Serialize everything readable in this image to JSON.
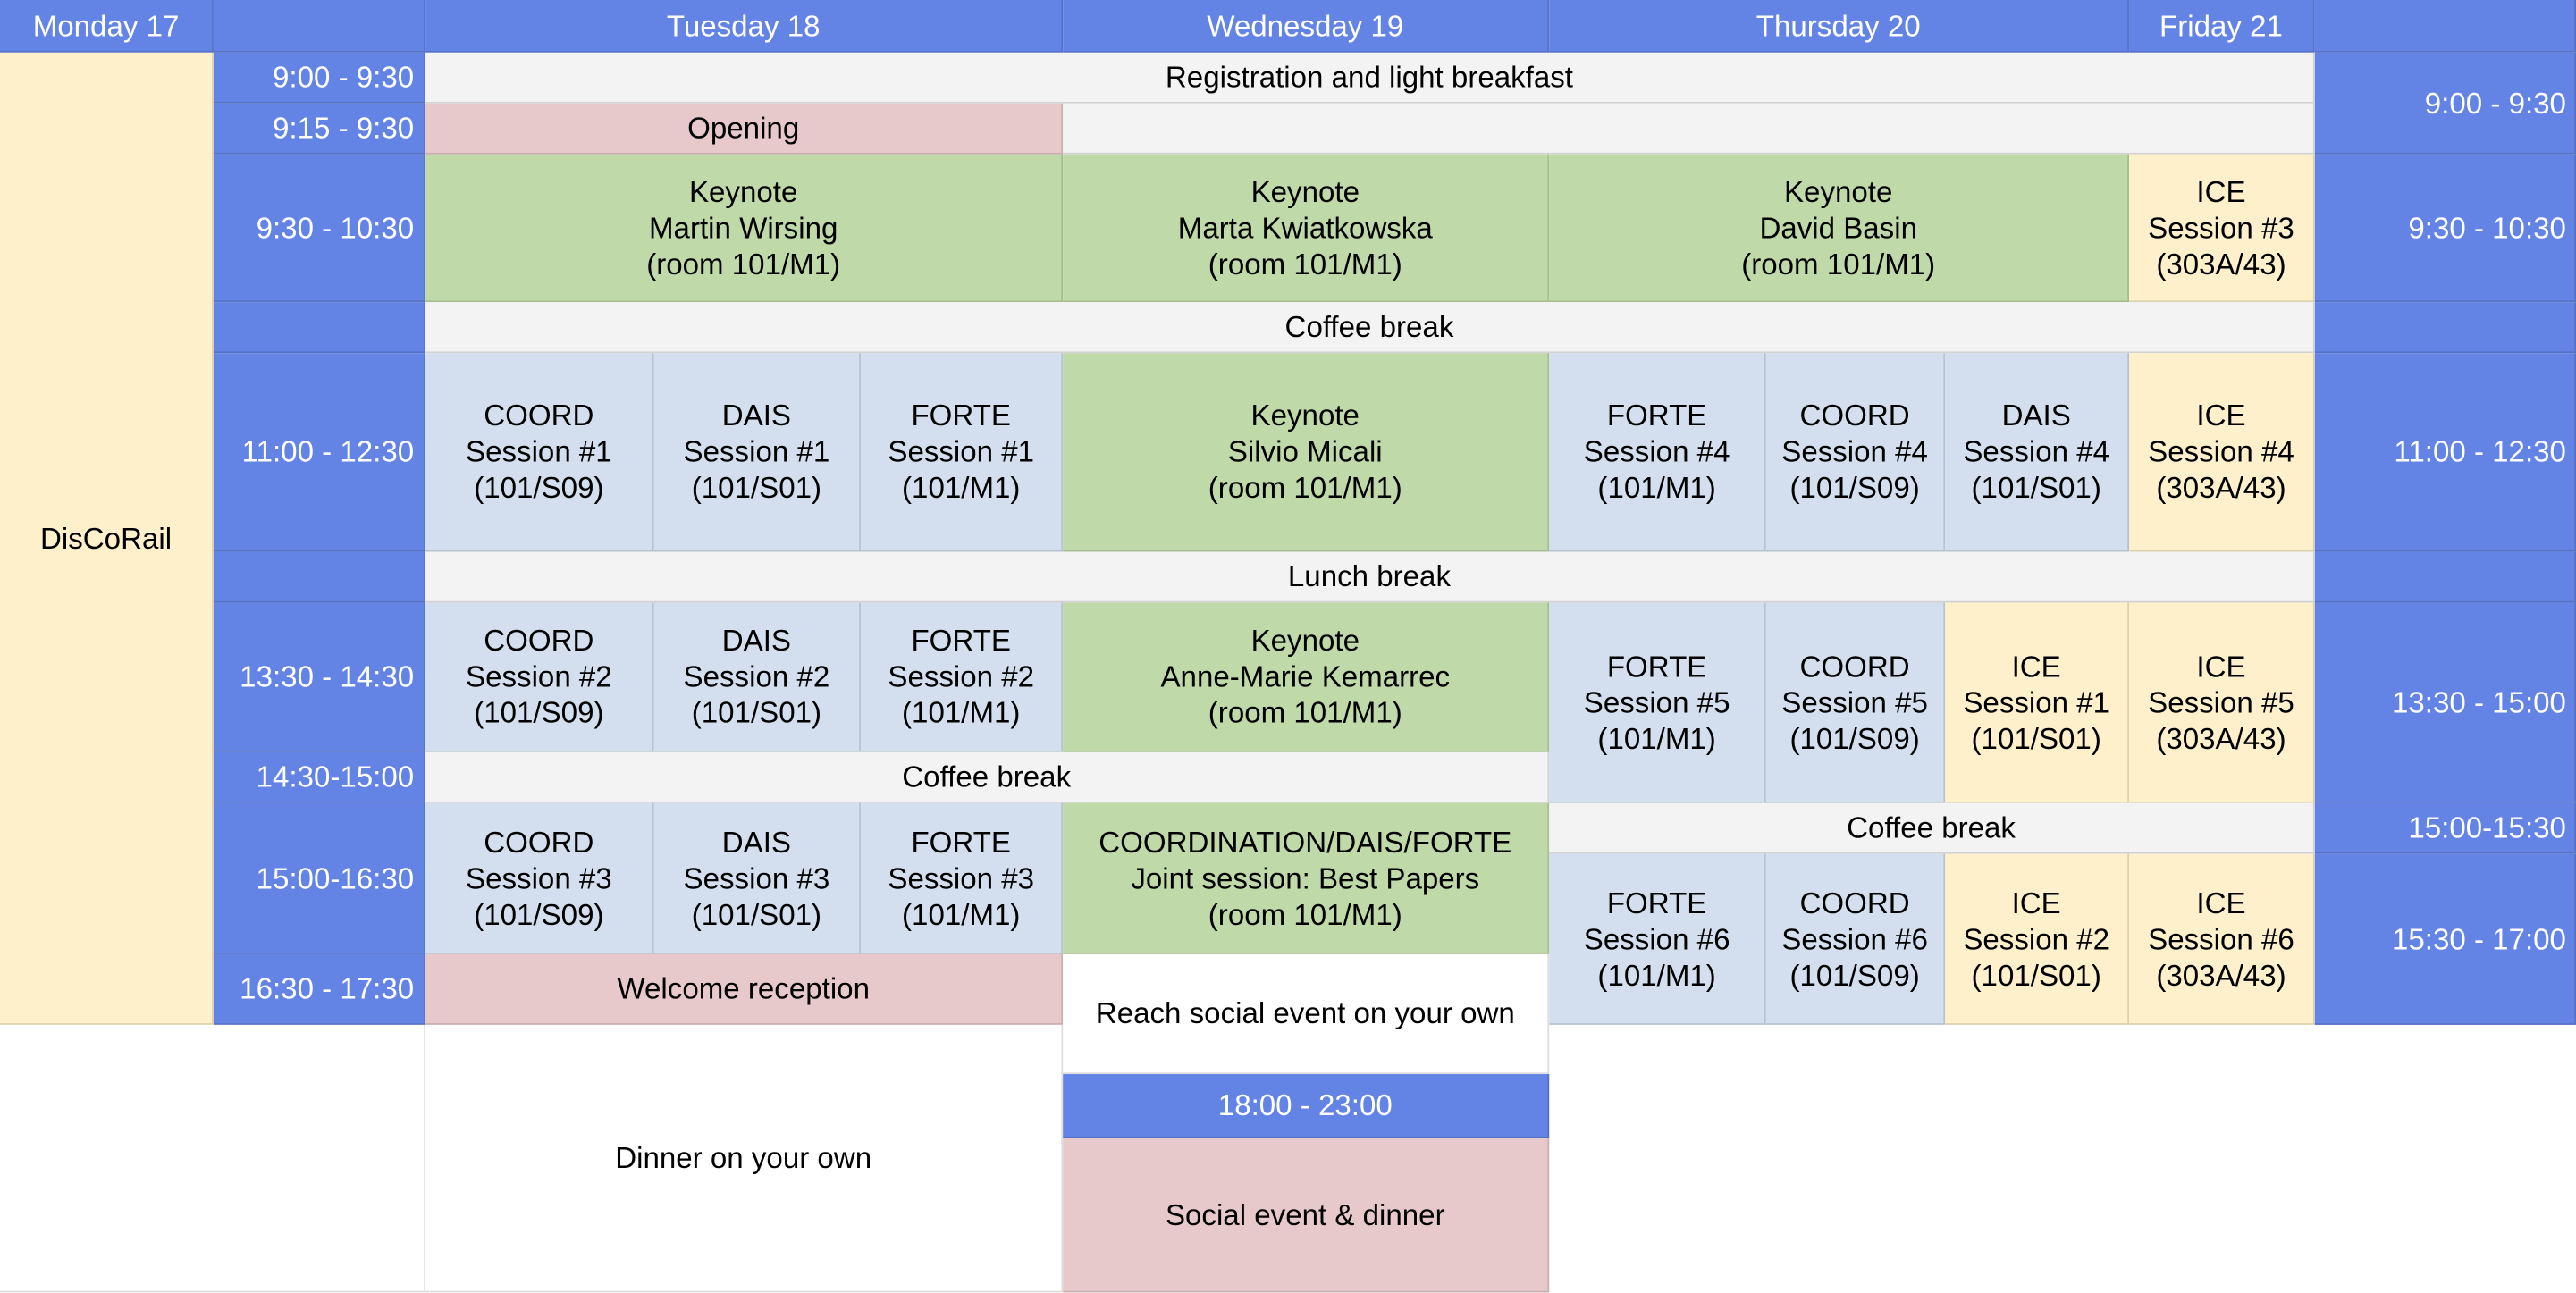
{
  "days": {
    "monday": "Monday 17",
    "tuesday": "Tuesday 18",
    "wednesday": "Wednesday 19",
    "thursday": "Thursday 20",
    "friday": "Friday 21"
  },
  "monday_event": "DisCoRail",
  "times_left": {
    "t0900": "9:00 - 9:30",
    "t0915": "9:15 - 9:30",
    "t0930": "9:30 - 10:30",
    "t1100": "11:00 - 12:30",
    "t1330": "13:30 - 14:30",
    "t1430": "14:30-15:00",
    "t1500": "15:00-16:30",
    "t1630": "16:30 - 17:30"
  },
  "times_right": {
    "t0900": "9:00 - 9:30",
    "t0930": "9:30 - 10:30",
    "t1100": "11:00 - 12:30",
    "t1330": "13:30 - 15:00",
    "t1500": "15:00-15:30",
    "t1530": "15:30 - 17:00"
  },
  "breaks": {
    "registration": "Registration and light breakfast",
    "coffee_morning": "Coffee break",
    "lunch": "Lunch break",
    "coffee_tue_wed": "Coffee break",
    "coffee_thu_fri": "Coffee break"
  },
  "opening": "Opening",
  "keynotes": {
    "tue": "Keynote\nMartin Wirsing\n(room 101/M1)",
    "wed_am": "Keynote\nMarta Kwiatkowska\n(room 101/M1)",
    "thu": "Keynote\nDavid Basin\n(room 101/M1)",
    "wed_mid": "Keynote\nSilvio Micali\n(room 101/M1)",
    "wed_pm": "Keynote\nAnne-Marie Kemarrec\n(room 101/M1)"
  },
  "sessions": {
    "fri_ice3": "ICE\nSession #3\n(303A/43)",
    "tue_coord1": "COORD\nSession #1\n(101/S09)",
    "tue_dais1": "DAIS\nSession #1\n(101/S01)",
    "tue_forte1": "FORTE\nSession #1\n(101/M1)",
    "thu_forte4": "FORTE\nSession #4\n(101/M1)",
    "thu_coord4": "COORD\nSession #4\n(101/S09)",
    "thu_dais4": "DAIS\nSession #4\n(101/S01)",
    "fri_ice4": "ICE\nSession #4\n(303A/43)",
    "tue_coord2": "COORD\nSession #2\n(101/S09)",
    "tue_dais2": "DAIS\nSession #2\n(101/S01)",
    "tue_forte2": "FORTE\nSession #2\n(101/M1)",
    "thu_forte5": "FORTE\nSession #5\n(101/M1)",
    "thu_coord5": "COORD\nSession #5\n(101/S09)",
    "thu_ice1": "ICE\nSession #1\n(101/S01)",
    "fri_ice5": "ICE\nSession #5\n(303A/43)",
    "tue_coord3": "COORD\nSession #3\n(101/S09)",
    "tue_dais3": "DAIS\nSession #3\n(101/S01)",
    "tue_forte3": "FORTE\nSession #3\n(101/M1)",
    "wed_joint": "COORDINATION/DAIS/FORTE\nJoint session: Best Papers\n(room 101/M1)",
    "thu_forte6": "FORTE\nSession #6\n(101/M1)",
    "thu_coord6": "COORD\nSession #6\n(101/S09)",
    "thu_ice2": "ICE\nSession #2\n(101/S01)",
    "fri_ice6": "ICE\nSession #6\n(303A/43)"
  },
  "evening": {
    "welcome": "Welcome reception",
    "reach_social": "Reach social event on your own",
    "dinner_own": "Dinner on your own",
    "social_time": "18:00 - 23:00",
    "social_dinner": "Social event & dinner"
  },
  "colors": {
    "header_blue": "#6384e5",
    "break_gray": "#f3f3f3",
    "event_pink": "#e7c9cc",
    "keynote_green": "#c0d9a8",
    "session_blue": "#d3dfee",
    "ice_yellow": "#fdf0ca"
  }
}
